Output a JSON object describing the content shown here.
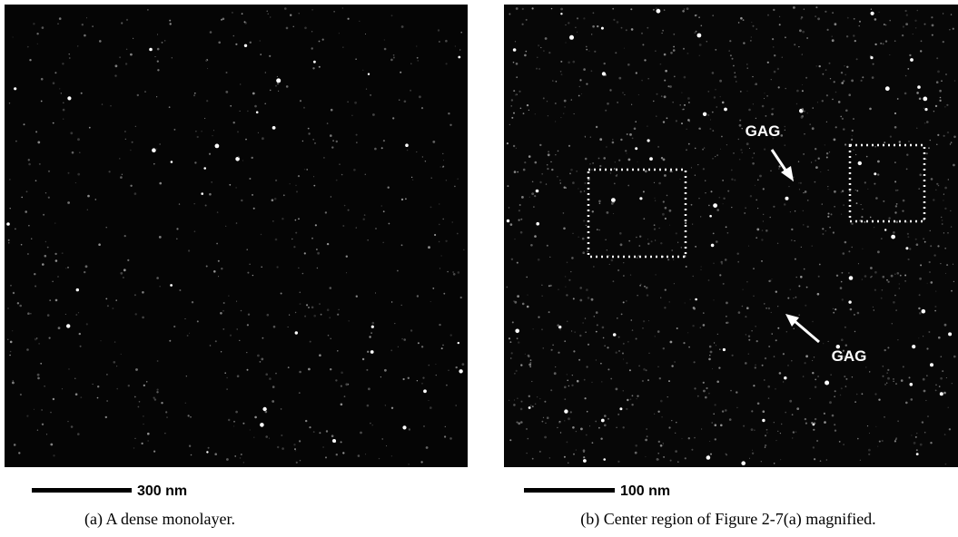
{
  "panels": [
    {
      "scale_bar": "300 nm",
      "caption": "(a) A dense monolayer."
    },
    {
      "scale_bar": "100 nm",
      "caption": "(b) Center region of Figure 2-7(a) magnified.",
      "annotations": [
        "GAG",
        "GAG"
      ]
    }
  ]
}
